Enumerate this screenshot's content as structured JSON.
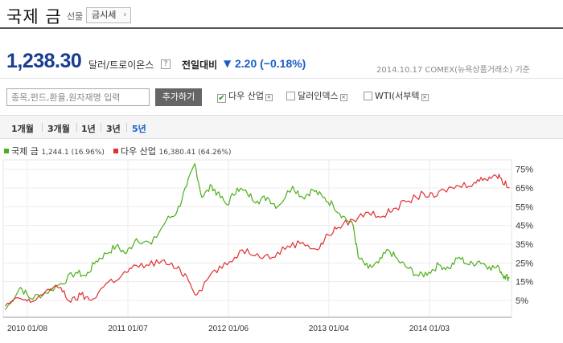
{
  "header": {
    "title": "국제 금",
    "subtitle": "선물",
    "sise_button": "금시세"
  },
  "quote": {
    "price": "1,238.30",
    "unit": "달러/트로이온스",
    "help": "?",
    "change_label": "전일대비",
    "change": "2.20 (−0.18%)",
    "date_source": "2014.10.17  COMEX(뉴욕상품거래소) 기준"
  },
  "compare": {
    "search_placeholder": "종목,펀드,환율,원자재명 입력",
    "add_button": "추가하기",
    "items": [
      {
        "label": "다우 산업",
        "checked": true
      },
      {
        "label": "달러인덱스",
        "checked": false
      },
      {
        "label": "WTI(서부텍",
        "checked": false
      }
    ]
  },
  "periods": [
    "1개월",
    "3개월",
    "1년",
    "3년",
    "5년"
  ],
  "active_period": "5년",
  "colors": {
    "gold": "#4caf1a",
    "dow": "#e03030",
    "price": "#1a3d92",
    "change": "#1a5fc8"
  },
  "legend": [
    {
      "name": "국제 금",
      "value": "1,244.1 (16.96%)"
    },
    {
      "name": "다우 산업",
      "value": "16,380.41 (64.26%)"
    }
  ],
  "chart_data": {
    "type": "line",
    "x_ticks": [
      "2010 01/08",
      "2011 01/07",
      "2012 01/06",
      "2013 01/04",
      "2014 01/03"
    ],
    "y_ticks": [
      "5%",
      "15%",
      "25%",
      "35%",
      "45%",
      "55%",
      "65%",
      "75%"
    ],
    "ylim": [
      -4,
      80
    ],
    "grid": true,
    "series": [
      {
        "name": "국제 금",
        "color": "#4caf1a",
        "t": [
          2009.8,
          2009.95,
          2010.05,
          2010.2,
          2010.35,
          2010.5,
          2010.6,
          2010.7,
          2010.8,
          2010.9,
          2011.0,
          2011.1,
          2011.25,
          2011.4,
          2011.5,
          2011.6,
          2011.68,
          2011.75,
          2011.85,
          2011.9,
          2012.0,
          2012.1,
          2012.2,
          2012.3,
          2012.4,
          2012.5,
          2012.65,
          2012.75,
          2012.85,
          2012.95,
          2013.05,
          2013.15,
          2013.25,
          2013.3,
          2013.4,
          2013.5,
          2013.6,
          2013.7,
          2013.8,
          2013.9,
          2014.0,
          2014.1,
          2014.2,
          2014.3,
          2014.4,
          2014.5,
          2014.6,
          2014.7,
          2014.75,
          2014.8
        ],
        "v": [
          0,
          12,
          6,
          9,
          14,
          20,
          18,
          26,
          30,
          34,
          30,
          38,
          35,
          48,
          52,
          66,
          78,
          60,
          66,
          62,
          56,
          65,
          62,
          58,
          60,
          55,
          66,
          60,
          64,
          60,
          56,
          50,
          45,
          28,
          22,
          25,
          32,
          26,
          22,
          18,
          20,
          24,
          22,
          28,
          24,
          26,
          23,
          22,
          18,
          17
        ]
      },
      {
        "name": "다우 산업",
        "color": "#e03030",
        "t": [
          2009.8,
          2009.95,
          2010.05,
          2010.2,
          2010.35,
          2010.45,
          2010.55,
          2010.65,
          2010.8,
          2010.95,
          2011.05,
          2011.2,
          2011.35,
          2011.5,
          2011.6,
          2011.7,
          2011.85,
          2012.0,
          2012.15,
          2012.3,
          2012.45,
          2012.6,
          2012.75,
          2012.9,
          2013.0,
          2013.1,
          2013.25,
          2013.4,
          2013.55,
          2013.65,
          2013.8,
          2013.95,
          2014.05,
          2014.15,
          2014.3,
          2014.45,
          2014.55,
          2014.65,
          2014.72,
          2014.8
        ],
        "v": [
          2,
          6,
          4,
          10,
          12,
          4,
          8,
          5,
          14,
          18,
          22,
          24,
          26,
          22,
          18,
          8,
          20,
          24,
          32,
          30,
          28,
          34,
          36,
          32,
          40,
          44,
          48,
          52,
          50,
          54,
          58,
          62,
          60,
          64,
          66,
          68,
          70,
          72,
          70,
          65
        ]
      }
    ]
  }
}
